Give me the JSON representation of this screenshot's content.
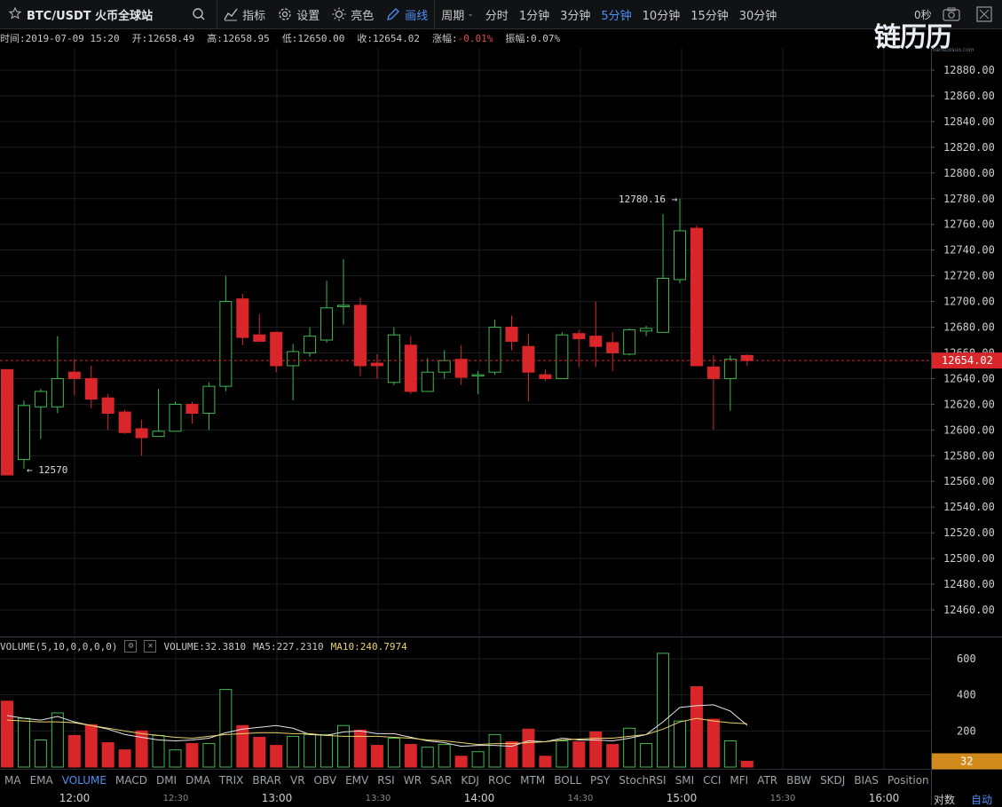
{
  "toolbar": {
    "symbol": "BTC/USDT 火币全球站",
    "indicators": "指标",
    "settings": "设置",
    "theme": "亮色",
    "draw": "画线",
    "period_label": "周期",
    "periods": [
      "分时",
      "1分钟",
      "3分钟",
      "5分钟",
      "10分钟",
      "15分钟",
      "30分钟"
    ],
    "active_period": "5分钟",
    "countdown": "0秒"
  },
  "logo": {
    "text": "链历历",
    "subtext": "liansuosuo.com"
  },
  "info": {
    "time": "时间:2019-07-09 15:20",
    "open": "开:12658.49",
    "high": "高:12658.95",
    "low": "低:12650.00",
    "close": "收:12654.02",
    "change_label": "涨幅:",
    "change_value": "-0.01%",
    "amplitude": "振幅:0.07%"
  },
  "price_axis": {
    "ticks": [
      "12880.00",
      "12860.00",
      "12840.00",
      "12820.00",
      "12800.00",
      "12780.00",
      "12760.00",
      "12740.00",
      "12720.00",
      "12700.00",
      "12680.00",
      "12660.00",
      "12640.00",
      "12620.00",
      "12600.00",
      "12580.00",
      "12560.00",
      "12540.00",
      "12520.00",
      "12500.00",
      "12480.00",
      "12460.00"
    ],
    "current_price": "12654.02",
    "high_marker": "12780.16 →",
    "low_marker": "← 12570"
  },
  "volume_panel": {
    "legend_name": "VOLUME(5,10,0,0,0,0)",
    "volume": "VOLUME:32.3810",
    "ma5": "MA5:227.2310",
    "ma10": "MA10:240.7974",
    "axis_ticks": [
      "600",
      "400",
      "200"
    ],
    "current_volume": "32"
  },
  "indicator_tabs": [
    "MA",
    "EMA",
    "VOLUME",
    "MACD",
    "DMI",
    "DMA",
    "TRIX",
    "BRAR",
    "VR",
    "OBV",
    "EMV",
    "RSI",
    "WR",
    "SAR",
    "KDJ",
    "ROC",
    "MTM",
    "BOLL",
    "PSY",
    "StochRSI",
    "SMI",
    "CCI",
    "MFI",
    "ATR",
    "BBW",
    "SKDJ",
    "BIAS",
    "Position"
  ],
  "active_indicator": "VOLUME",
  "time_axis": {
    "major": [
      "12:00",
      "13:00",
      "14:00",
      "15:00",
      "16:00"
    ],
    "minor": [
      "12:30",
      "13:30",
      "14:30",
      "15:30"
    ]
  },
  "corner": {
    "left": "对数",
    "right": "自动"
  },
  "colors": {
    "up": "#3fb950",
    "down": "#d9262a",
    "accent": "#4d8ff7",
    "ma10": "#e8d36a",
    "ma5": "#e6e6e6",
    "volume_tag": "#d18a1c"
  },
  "chart_data": {
    "type": "candlestick",
    "ylim": [
      12450,
      12890
    ],
    "candles": [
      {
        "o": 12647,
        "h": 12647,
        "l": 12565,
        "c": 12565
      },
      {
        "o": 12577,
        "h": 12623,
        "l": 12570,
        "c": 12619
      },
      {
        "o": 12618,
        "h": 12632,
        "l": 12593,
        "c": 12630
      },
      {
        "o": 12618,
        "h": 12673,
        "l": 12613,
        "c": 12640
      },
      {
        "o": 12645,
        "h": 12655,
        "l": 12627,
        "c": 12640
      },
      {
        "o": 12640,
        "h": 12650,
        "l": 12617,
        "c": 12624
      },
      {
        "o": 12625,
        "h": 12628,
        "l": 12600,
        "c": 12613
      },
      {
        "o": 12614,
        "h": 12616,
        "l": 12597,
        "c": 12598
      },
      {
        "o": 12601,
        "h": 12608,
        "l": 12580,
        "c": 12594
      },
      {
        "o": 12595,
        "h": 12632,
        "l": 12595,
        "c": 12599
      },
      {
        "o": 12599,
        "h": 12622,
        "l": 12599,
        "c": 12620
      },
      {
        "o": 12620,
        "h": 12622,
        "l": 12605,
        "c": 12613
      },
      {
        "o": 12613,
        "h": 12637,
        "l": 12600,
        "c": 12634
      },
      {
        "o": 12634,
        "h": 12720,
        "l": 12630,
        "c": 12700
      },
      {
        "o": 12702,
        "h": 12706,
        "l": 12666,
        "c": 12672
      },
      {
        "o": 12674,
        "h": 12690,
        "l": 12670,
        "c": 12669
      },
      {
        "o": 12676,
        "h": 12676,
        "l": 12645,
        "c": 12650
      },
      {
        "o": 12650,
        "h": 12667,
        "l": 12623,
        "c": 12661
      },
      {
        "o": 12660,
        "h": 12680,
        "l": 12657,
        "c": 12673
      },
      {
        "o": 12670,
        "h": 12716,
        "l": 12668,
        "c": 12695
      },
      {
        "o": 12697,
        "h": 12733,
        "l": 12682,
        "c": 12697
      },
      {
        "o": 12697,
        "h": 12703,
        "l": 12642,
        "c": 12650
      },
      {
        "o": 12652,
        "h": 12659,
        "l": 12640,
        "c": 12650
      },
      {
        "o": 12637,
        "h": 12680,
        "l": 12635,
        "c": 12674
      },
      {
        "o": 12666,
        "h": 12673,
        "l": 12628,
        "c": 12630
      },
      {
        "o": 12630,
        "h": 12656,
        "l": 12630,
        "c": 12645
      },
      {
        "o": 12645,
        "h": 12662,
        "l": 12640,
        "c": 12654
      },
      {
        "o": 12655,
        "h": 12666,
        "l": 12635,
        "c": 12641
      },
      {
        "o": 12643,
        "h": 12646,
        "l": 12628,
        "c": 12643
      },
      {
        "o": 12645,
        "h": 12686,
        "l": 12643,
        "c": 12680
      },
      {
        "o": 12680,
        "h": 12689,
        "l": 12662,
        "c": 12669
      },
      {
        "o": 12665,
        "h": 12675,
        "l": 12622,
        "c": 12645
      },
      {
        "o": 12643,
        "h": 12647,
        "l": 12638,
        "c": 12640
      },
      {
        "o": 12640,
        "h": 12676,
        "l": 12640,
        "c": 12674
      },
      {
        "o": 12675,
        "h": 12678,
        "l": 12649,
        "c": 12671
      },
      {
        "o": 12673,
        "h": 12700,
        "l": 12649,
        "c": 12665
      },
      {
        "o": 12668,
        "h": 12676,
        "l": 12646,
        "c": 12660
      },
      {
        "o": 12659,
        "h": 12679,
        "l": 12658,
        "c": 12678
      },
      {
        "o": 12677,
        "h": 12681,
        "l": 12673,
        "c": 12679
      },
      {
        "o": 12676,
        "h": 12768,
        "l": 12676,
        "c": 12718
      },
      {
        "o": 12717,
        "h": 12780,
        "l": 12714,
        "c": 12755
      },
      {
        "o": 12757,
        "h": 12759,
        "l": 12650,
        "c": 12650
      },
      {
        "o": 12649,
        "h": 12658,
        "l": 12600,
        "c": 12640
      },
      {
        "o": 12640,
        "h": 12658,
        "l": 12615,
        "c": 12655
      },
      {
        "o": 12658,
        "h": 12659,
        "l": 12650,
        "c": 12654
      }
    ],
    "volume": [
      365,
      270,
      150,
      300,
      175,
      235,
      135,
      95,
      200,
      175,
      95,
      130,
      130,
      430,
      230,
      165,
      120,
      170,
      180,
      180,
      230,
      205,
      120,
      160,
      125,
      110,
      125,
      60,
      85,
      180,
      140,
      210,
      60,
      145,
      140,
      195,
      125,
      215,
      130,
      630,
      255,
      445,
      265,
      145,
      32
    ],
    "ma5": [
      285,
      270,
      260,
      280,
      250,
      230,
      210,
      180,
      165,
      150,
      145,
      150,
      160,
      190,
      210,
      220,
      230,
      215,
      180,
      175,
      195,
      200,
      185,
      185,
      165,
      145,
      135,
      115,
      120,
      120,
      115,
      145,
      140,
      160,
      150,
      150,
      145,
      160,
      180,
      250,
      330,
      340,
      345,
      310,
      232
    ],
    "ma10": [
      260,
      255,
      250,
      250,
      245,
      230,
      215,
      200,
      185,
      175,
      165,
      160,
      170,
      180,
      185,
      190,
      190,
      185,
      185,
      175,
      170,
      170,
      170,
      165,
      160,
      150,
      145,
      135,
      125,
      130,
      130,
      135,
      140,
      150,
      155,
      160,
      160,
      170,
      180,
      210,
      250,
      270,
      255,
      245,
      240
    ]
  }
}
